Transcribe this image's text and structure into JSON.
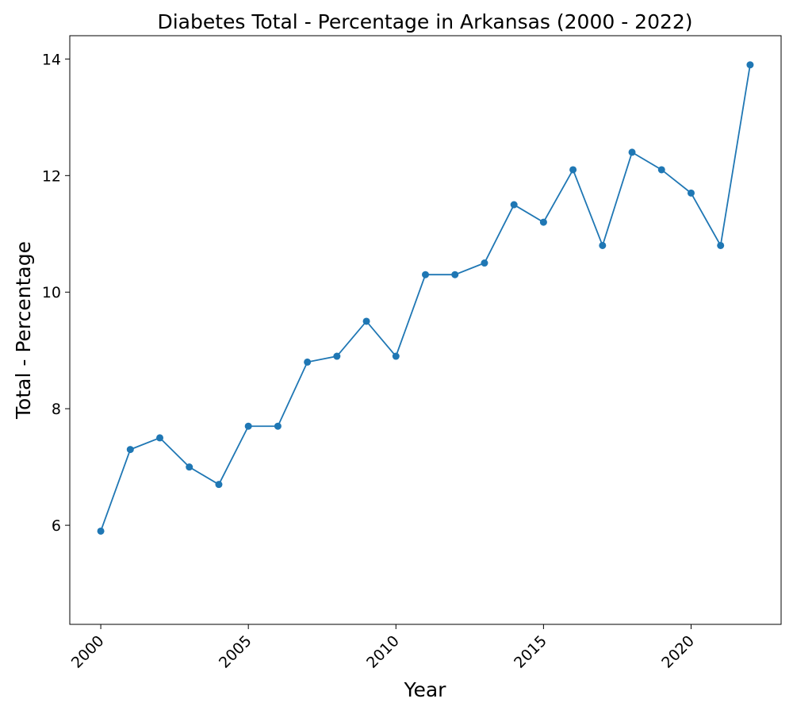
{
  "chart_data": {
    "type": "line",
    "title": "Diabetes Total - Percentage in Arkansas (2000 - 2022)",
    "xlabel": "Year",
    "ylabel": "Total - Percentage",
    "x": [
      2000,
      2001,
      2002,
      2003,
      2004,
      2005,
      2006,
      2007,
      2008,
      2009,
      2010,
      2011,
      2012,
      2013,
      2014,
      2015,
      2016,
      2017,
      2018,
      2019,
      2020,
      2021,
      2022
    ],
    "series": [
      {
        "values": [
          5.9,
          7.3,
          7.5,
          7.0,
          6.7,
          7.7,
          7.7,
          8.8,
          8.9,
          9.5,
          8.9,
          10.3,
          10.3,
          10.5,
          11.5,
          11.2,
          12.1,
          10.8,
          12.4,
          12.1,
          11.7,
          10.8,
          13.9
        ],
        "color": "#1f77b4"
      }
    ],
    "xlim": [
      1998.95,
      2023.05
    ],
    "ylim": [
      4.3,
      14.4
    ],
    "xticks": [
      "2000",
      "2005",
      "2010",
      "2015",
      "2020"
    ],
    "yticks": [
      "6",
      "8",
      "10",
      "12",
      "14"
    ],
    "xtick_rotation": 45,
    "grid": false,
    "legend": false,
    "marker": "circle"
  }
}
